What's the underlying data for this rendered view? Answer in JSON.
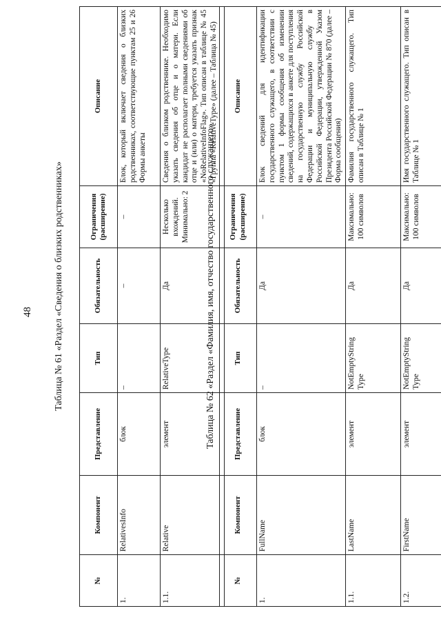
{
  "page_number": "48",
  "headers": [
    "№",
    "Компонент",
    "Представление",
    "Тип",
    "Обязательность",
    "Ограничения (расширение)",
    "Описание"
  ],
  "table61": {
    "caption": "Таблица № 61 «Раздел «Сведения о близких родственниках»",
    "rows": [
      [
        "1.",
        "RelativesInfo",
        "блок",
        "–",
        "–",
        "–",
        "Блок, который включает сведения о близких родственниках, соответствующие пунктам 25 и 26 Формы анкеты"
      ],
      [
        "1.1.",
        "Relative",
        "элемент",
        "RelativeType",
        "Да",
        "Несколько вхождений. Минимально: 2",
        "Сведения о близком родственнике. Необходимо указать сведения об отце и о матери. Если кандидат не располагает полными сведениями об отце и (или) о матери, требуется указать признак «NoRelativeInfoFlag». Тип описан в таблице № 45 «Группа «RelativeType» (далее – Таблица № 45)"
      ]
    ]
  },
  "table62": {
    "caption": "Таблица № 62 «Раздел «Фамилия, имя, отчество государственного служащего»",
    "rows": [
      [
        "1.",
        "FullName",
        "блок",
        "–",
        "Да",
        "–",
        "Блок сведений для идентификации государственного служащего, в соответствии с пунктом 1 формы сообщения об изменении сведений, содержащихся в анкете для поступления на государственную службу Российской Федерации и муниципальную службу в Российской Федерации, утвержденной Указом Президента Российской Федерации № 870 (далее – Форма сообщения)"
      ],
      [
        "1.1.",
        "LastName",
        "элемент",
        "NotEmptyString Type",
        "Да",
        "Максимально: 100 символов",
        "Фамилия государственного служащего. Тип описан в Таблице № 1"
      ],
      [
        "1.2.",
        "FirstName",
        "элемент",
        "NotEmptyString Type",
        "Да",
        "Максимально: 100 символов",
        "Имя государственного служащего. Тип описан в Таблице № 1"
      ]
    ]
  }
}
